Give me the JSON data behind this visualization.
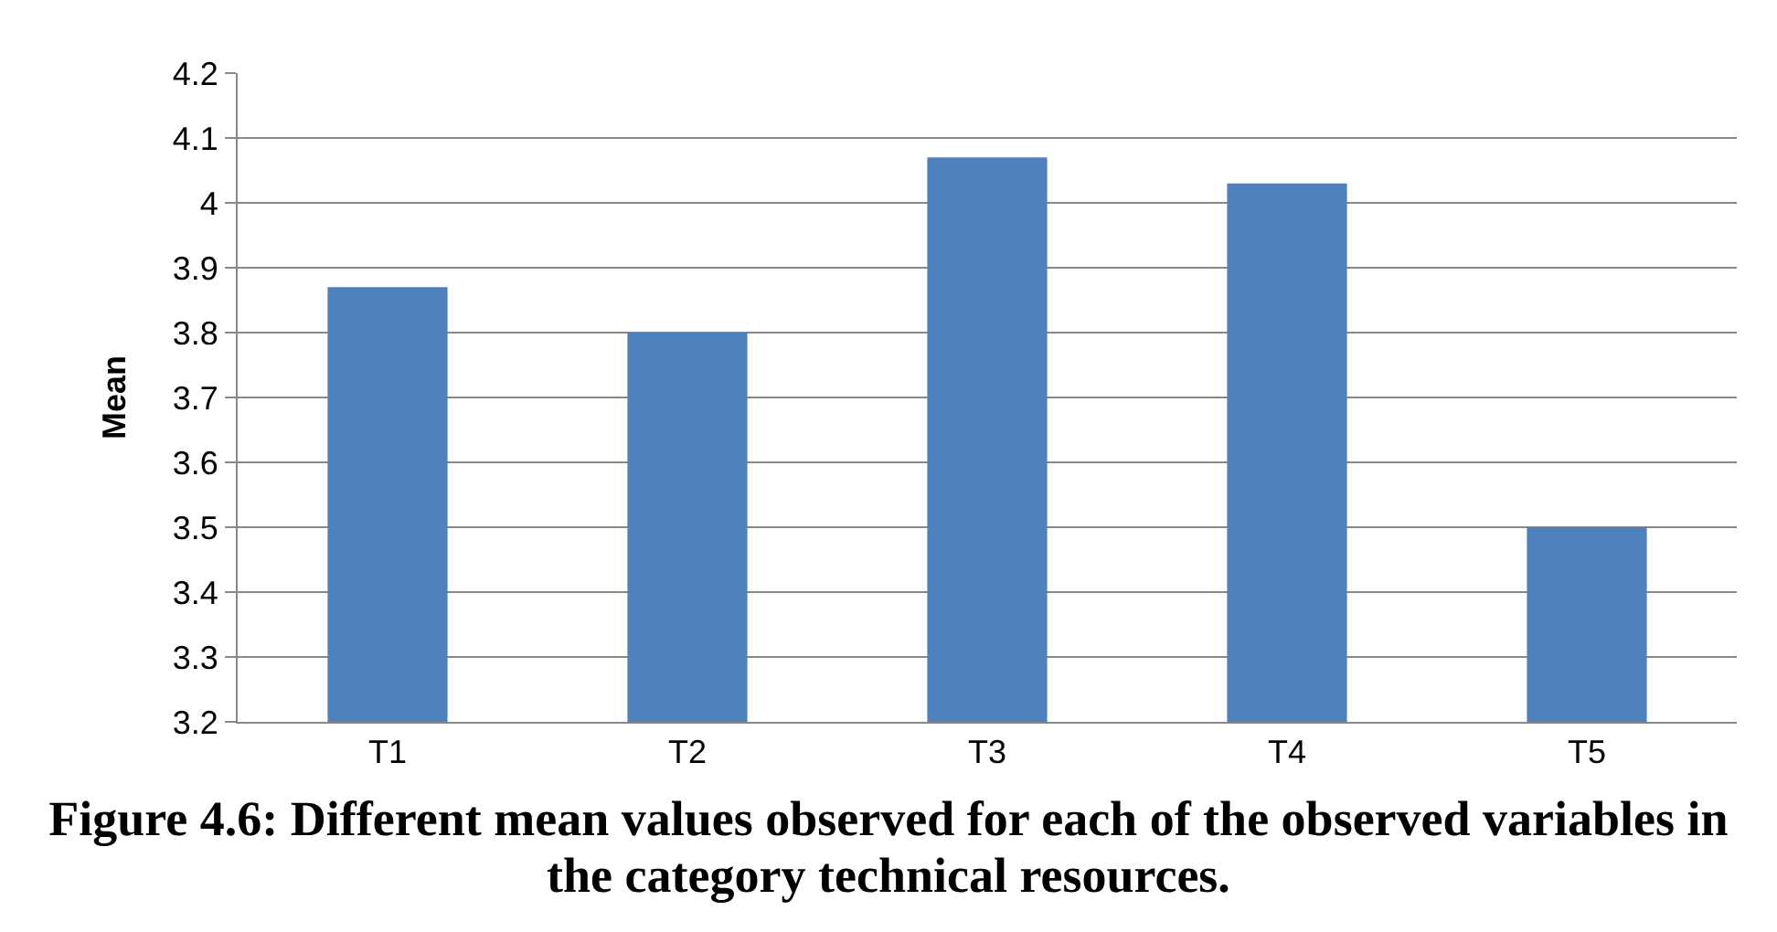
{
  "chart_data": {
    "type": "bar",
    "ylabel": "Mean",
    "categories": [
      "T1",
      "T2",
      "T3",
      "T4",
      "T5"
    ],
    "values": [
      3.87,
      3.8,
      4.07,
      4.03,
      3.5
    ],
    "color": "#4f81bd",
    "ylim": [
      3.2,
      4.2
    ],
    "yticks": [
      3.2,
      3.3,
      3.4,
      3.5,
      3.6,
      3.7,
      3.8,
      3.9,
      {
        "value": 4,
        "label": "4"
      },
      4.1,
      4.2
    ],
    "grid": "y",
    "legend": false,
    "annotations": [
      "Figure 4.6: Different mean values observed for each of the observed variables in the category technical resources."
    ]
  }
}
